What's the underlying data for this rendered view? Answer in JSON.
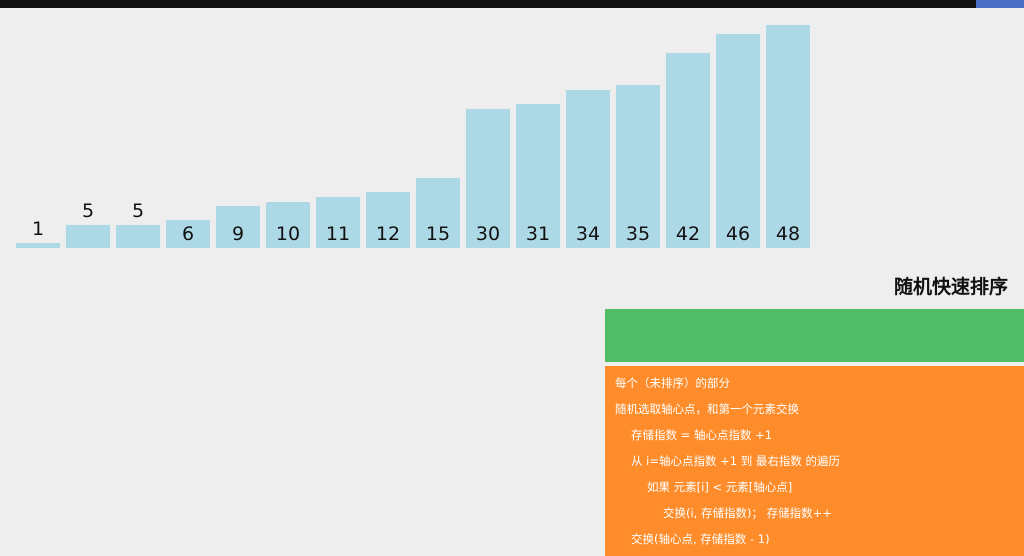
{
  "title": "随机快速排序",
  "colors": {
    "bar": "#add8e6",
    "status_panel": "#52bd68",
    "code_panel": "#fe8c2a",
    "topbar": "#111111",
    "topbar_accent": "#4a6fc7"
  },
  "array": {
    "values": [
      1,
      5,
      5,
      6,
      9,
      10,
      11,
      12,
      15,
      30,
      31,
      34,
      35,
      42,
      46,
      48
    ],
    "labels": [
      "1",
      "5",
      "5",
      "6",
      "9",
      "10",
      "11",
      "12",
      "15",
      "30",
      "31",
      "34",
      "35",
      "42",
      "46",
      "48"
    ]
  },
  "status": {
    "text": ""
  },
  "code": {
    "lines": [
      {
        "text": "每个（未排序）的部分",
        "indent": 0
      },
      {
        "text": "随机选取轴心点，和第一个元素交换",
        "indent": 0
      },
      {
        "text": "存储指数 = 轴心点指数 +1",
        "indent": 1
      },
      {
        "text": "从 i=轴心点指数 +1 到 最右指数 的遍历",
        "indent": 1
      },
      {
        "text": "如果 元素[i] < 元素[轴心点]",
        "indent": 2
      },
      {
        "text": "交换(i, 存储指数)； 存储指数++",
        "indent": 3
      },
      {
        "text": "交换(轴心点, 存储指数 - 1)",
        "indent": 1
      }
    ]
  }
}
